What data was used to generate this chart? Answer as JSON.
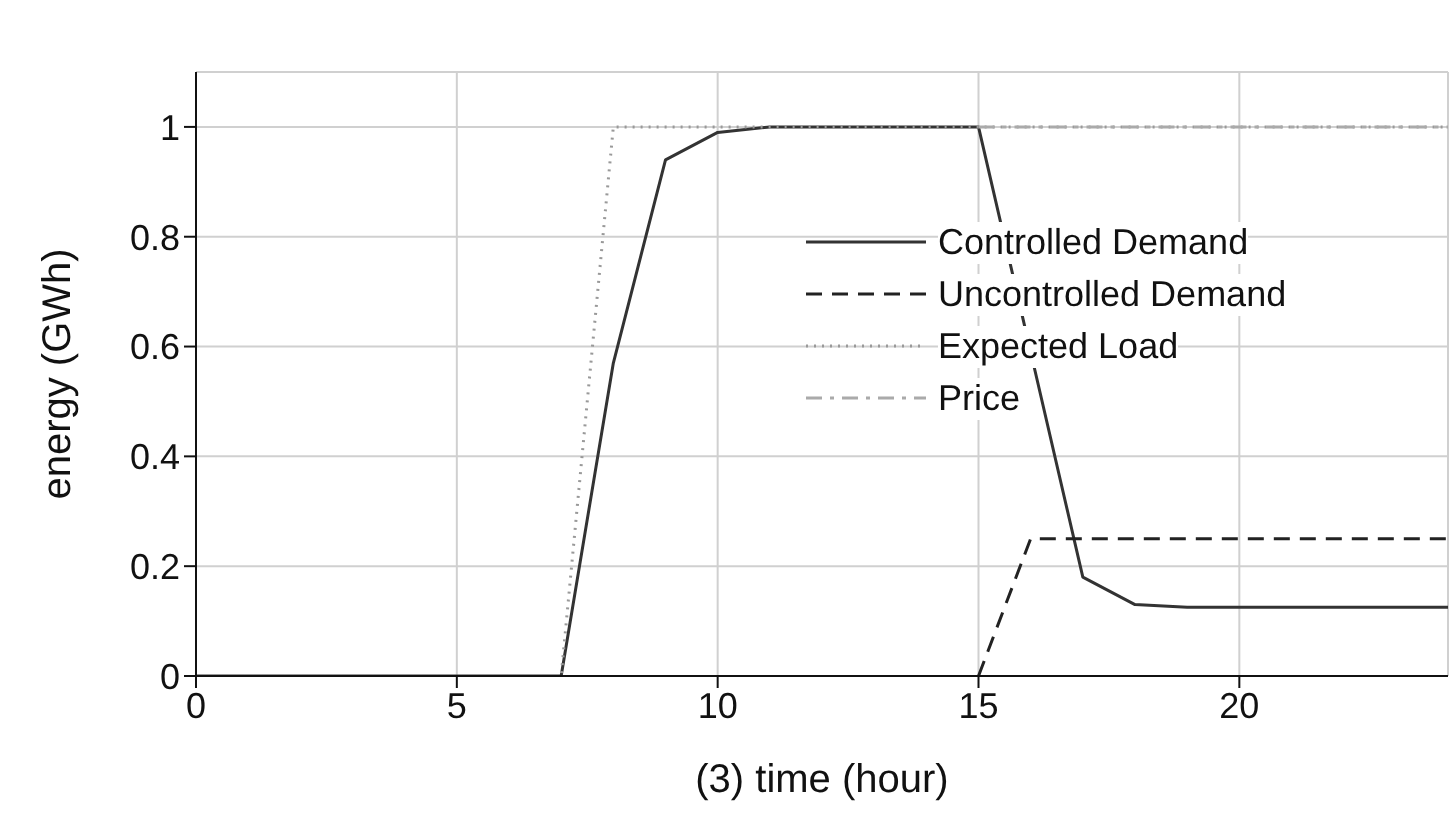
{
  "chart_data": {
    "type": "line",
    "xlabel": "(3)  time (hour)",
    "ylabel": "energy (GWh)",
    "x": [
      0,
      1,
      2,
      3,
      4,
      5,
      6,
      7,
      8,
      9,
      10,
      11,
      12,
      13,
      14,
      15,
      16,
      17,
      18,
      19,
      20,
      21,
      22,
      23,
      24
    ],
    "series": [
      {
        "name": "Controlled Demand",
        "color": "#333333",
        "line_style": "solid",
        "values": [
          0,
          0,
          0,
          0,
          0,
          0,
          0,
          0,
          0.57,
          0.94,
          0.99,
          1,
          1,
          1,
          1,
          1,
          0.59,
          0.18,
          0.13,
          0.125,
          0.125,
          0.125,
          0.125,
          0.125,
          0.125
        ]
      },
      {
        "name": "Uncontrolled Demand",
        "color": "#222222",
        "line_style": "dashed",
        "values": [
          null,
          null,
          null,
          null,
          null,
          null,
          null,
          null,
          null,
          null,
          null,
          null,
          null,
          null,
          null,
          0,
          0.25,
          0.25,
          0.25,
          0.25,
          0.25,
          0.25,
          0.25,
          0.25,
          0.25
        ]
      },
      {
        "name": "Expected Load",
        "color": "#999999",
        "line_style": "dotted",
        "values": [
          0,
          0,
          0,
          0,
          0,
          0,
          0,
          0,
          1,
          1,
          1,
          1,
          1,
          1,
          1,
          1,
          1,
          1,
          1,
          1,
          1,
          1,
          1,
          1,
          1
        ]
      },
      {
        "name": "Price",
        "color": "#aaaaaa",
        "line_style": "dashdot",
        "values": [
          null,
          null,
          null,
          null,
          null,
          null,
          null,
          null,
          null,
          null,
          null,
          null,
          null,
          null,
          null,
          1,
          1,
          1,
          1,
          1,
          1,
          1,
          1,
          1,
          1
        ]
      }
    ],
    "xlim": [
      0,
      24
    ],
    "xticks": [
      0,
      5,
      10,
      15,
      20
    ],
    "ylim": [
      0,
      1.1
    ],
    "yticks": [
      0,
      0.2,
      0.4,
      0.6,
      0.8,
      1
    ],
    "grid": true,
    "legend": "right",
    "marker": "none"
  }
}
